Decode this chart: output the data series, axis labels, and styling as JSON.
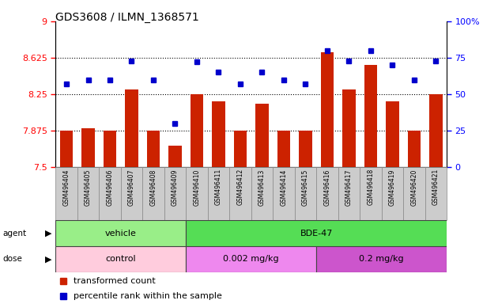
{
  "title": "GDS3608 / ILMN_1368571",
  "samples": [
    "GSM496404",
    "GSM496405",
    "GSM496406",
    "GSM496407",
    "GSM496408",
    "GSM496409",
    "GSM496410",
    "GSM496411",
    "GSM496412",
    "GSM496413",
    "GSM496414",
    "GSM496415",
    "GSM496416",
    "GSM496417",
    "GSM496418",
    "GSM496419",
    "GSM496420",
    "GSM496421"
  ],
  "bar_values": [
    7.875,
    7.9,
    7.875,
    8.3,
    7.875,
    7.72,
    8.25,
    8.18,
    7.875,
    8.15,
    7.875,
    7.875,
    8.68,
    8.3,
    8.55,
    8.18,
    7.875,
    8.25
  ],
  "dot_values": [
    57,
    60,
    60,
    73,
    60,
    30,
    72,
    65,
    57,
    65,
    60,
    57,
    80,
    73,
    80,
    70,
    60,
    73
  ],
  "bar_color": "#cc2200",
  "dot_color": "#0000cc",
  "ymin": 7.5,
  "ymax": 9.0,
  "yticks": [
    7.5,
    7.875,
    8.25,
    8.625,
    9.0
  ],
  "ytick_labels": [
    "7.5",
    "7.875",
    "8.25",
    "8.625",
    "9"
  ],
  "y2min": 0,
  "y2max": 100,
  "y2ticks": [
    0,
    25,
    50,
    75,
    100
  ],
  "y2tick_labels": [
    "0",
    "25",
    "50",
    "75",
    "100%"
  ],
  "hlines": [
    7.875,
    8.25,
    8.625
  ],
  "agent_groups": [
    {
      "label": "vehicle",
      "start": 0,
      "end": 6,
      "color": "#99ee88"
    },
    {
      "label": "BDE-47",
      "start": 6,
      "end": 18,
      "color": "#55dd55"
    }
  ],
  "dose_groups": [
    {
      "label": "control",
      "start": 0,
      "end": 6,
      "color": "#ffccdd"
    },
    {
      "label": "0.002 mg/kg",
      "start": 6,
      "end": 12,
      "color": "#ee88ee"
    },
    {
      "label": "0.2 mg/kg",
      "start": 12,
      "end": 18,
      "color": "#cc55cc"
    }
  ],
  "legend_bar_label": "transformed count",
  "legend_dot_label": "percentile rank within the sample",
  "bar_base": 7.5,
  "xlabel_bg": "#cccccc",
  "n_vehicle": 6,
  "n_bde47_low": 6,
  "n_bde47_high": 6
}
